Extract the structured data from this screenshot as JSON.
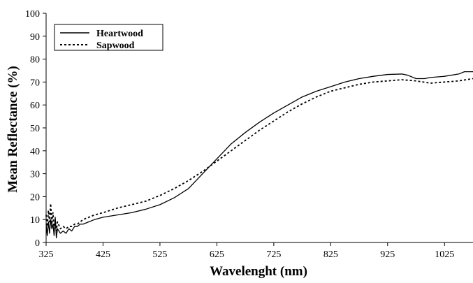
{
  "chart_data": {
    "type": "line",
    "title": "",
    "xlabel": "Wavelenght (nm)",
    "ylabel": "Mean Reflectance (%)",
    "xlim": [
      325,
      1075
    ],
    "ylim": [
      0,
      100
    ],
    "x_ticks": [
      "325",
      "425",
      "525",
      "625",
      "725",
      "825",
      "925",
      "1025"
    ],
    "y_ticks": [
      "0",
      "10",
      "20",
      "30",
      "40",
      "50",
      "60",
      "70",
      "80",
      "90",
      "100"
    ],
    "grid": false,
    "legend_position": "top-left",
    "series": [
      {
        "name": "Heartwood",
        "style": "solid",
        "color": "#000000",
        "x": [
          325,
          327,
          329,
          331,
          333,
          335,
          337,
          339,
          341,
          343,
          345,
          350,
          355,
          360,
          365,
          370,
          375,
          380,
          385,
          390,
          400,
          410,
          425,
          450,
          475,
          500,
          525,
          550,
          575,
          600,
          625,
          650,
          675,
          700,
          725,
          750,
          775,
          800,
          825,
          850,
          875,
          900,
          925,
          950,
          960,
          975,
          990,
          1000,
          1025,
          1050,
          1060,
          1075
        ],
        "y": [
          8,
          3,
          9,
          4,
          10,
          6,
          8,
          3,
          11,
          2,
          6,
          4,
          5,
          4,
          6,
          5,
          7,
          7,
          8,
          8,
          9,
          10,
          11,
          12,
          13,
          14.5,
          16.5,
          19.5,
          23.5,
          30,
          36.5,
          43,
          48,
          52.5,
          56.5,
          60,
          63.5,
          66,
          68,
          70,
          71.5,
          72.5,
          73.3,
          73.5,
          73,
          71.5,
          71.5,
          72,
          72.5,
          73.5,
          74.5,
          74.5
        ]
      },
      {
        "name": "Sapwood",
        "style": "dotted",
        "color": "#000000",
        "x": [
          325,
          327,
          329,
          331,
          333,
          335,
          337,
          339,
          341,
          343,
          345,
          350,
          355,
          360,
          365,
          370,
          375,
          380,
          385,
          390,
          400,
          410,
          425,
          450,
          475,
          500,
          525,
          550,
          575,
          600,
          625,
          650,
          675,
          700,
          725,
          750,
          775,
          800,
          825,
          850,
          875,
          900,
          925,
          950,
          975,
          1000,
          1025,
          1050,
          1075
        ],
        "y": [
          12,
          7,
          14,
          9,
          17,
          8,
          13,
          6,
          10,
          5,
          9,
          6,
          7,
          6,
          7,
          7,
          8,
          8,
          9,
          10,
          11,
          12,
          13,
          15,
          16.5,
          18,
          20.5,
          23.5,
          27,
          31,
          35.5,
          40,
          44.5,
          49,
          53,
          57,
          60.5,
          63.5,
          66,
          67.5,
          69,
          70,
          70.5,
          71,
          70.5,
          69.5,
          70,
          70.5,
          71.5
        ]
      }
    ]
  }
}
